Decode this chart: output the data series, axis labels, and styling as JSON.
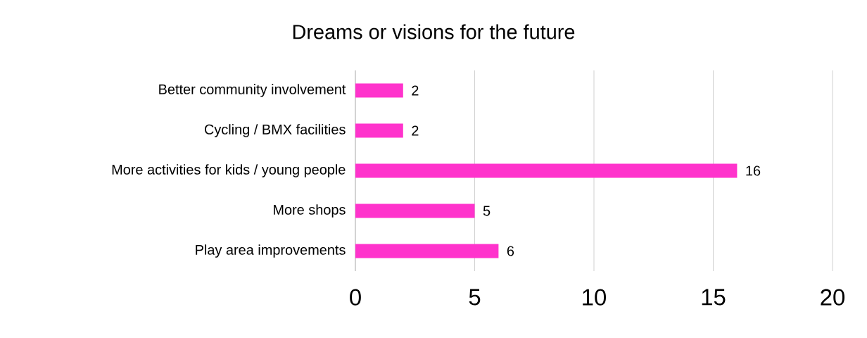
{
  "chart_data": {
    "type": "bar",
    "orientation": "horizontal",
    "title": "Dreams or visions for the future",
    "categories": [
      "Better community involvement",
      "Cycling / BMX facilities",
      "More activities for kids / young people",
      "More shops",
      "Play area improvements"
    ],
    "values": [
      2,
      2,
      16,
      5,
      6
    ],
    "color": "#ff33cc",
    "xlim": [
      0,
      20
    ],
    "xticks": [
      0,
      5,
      10,
      15,
      20
    ],
    "grid": "x",
    "data_labels": true
  }
}
